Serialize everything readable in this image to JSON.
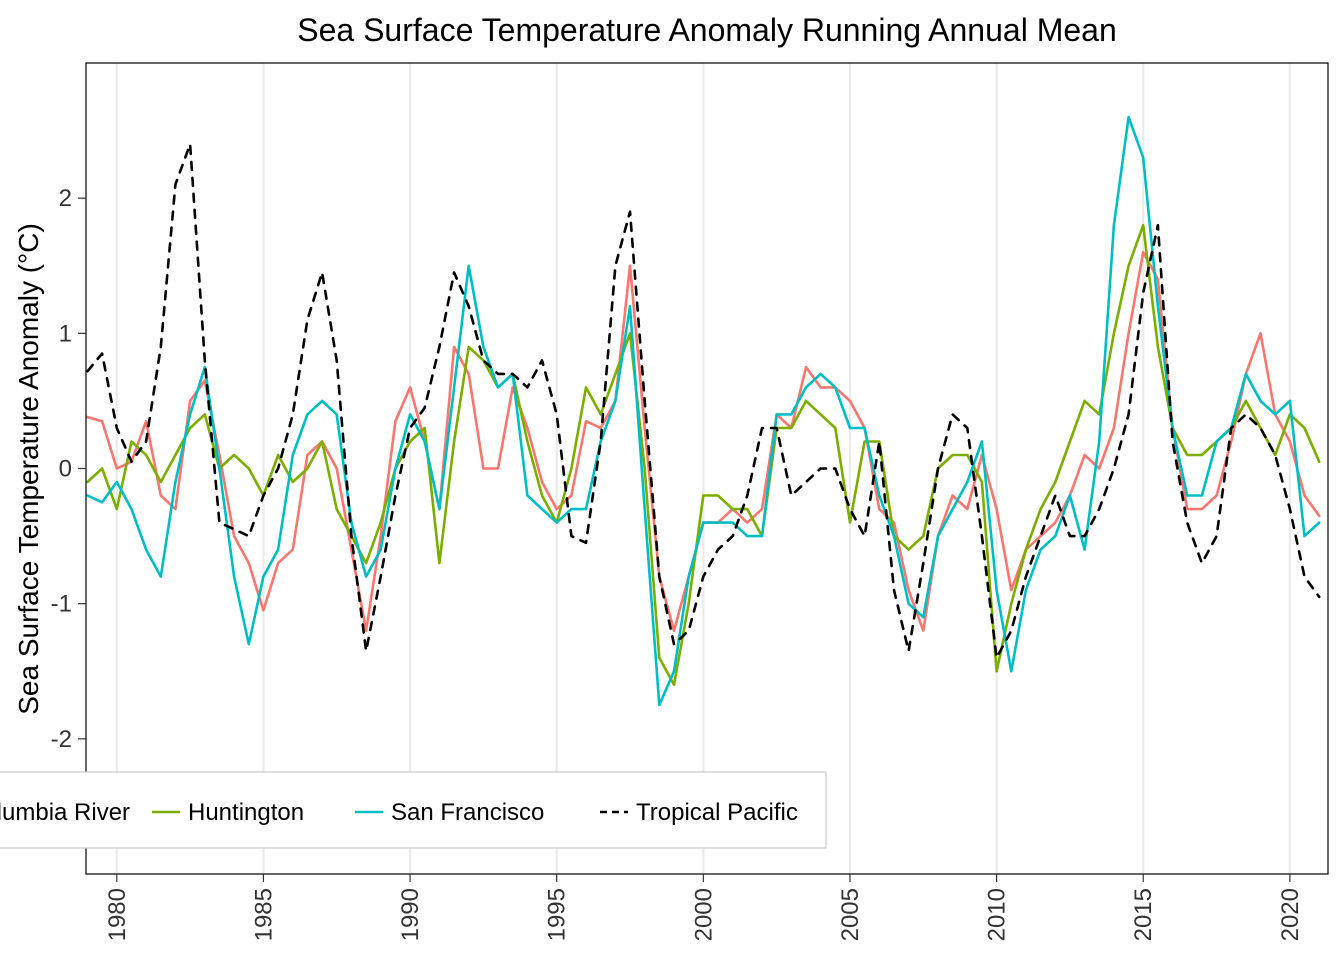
{
  "chart_data": {
    "type": "line",
    "title": "Sea Surface Temperature Anomaly Running Annual Mean",
    "xlabel": "",
    "ylabel": "Sea Surface Temperature Anomaly (°C)",
    "xlim": [
      1978.95,
      2021.3
    ],
    "ylim": [
      -3.0,
      3.0
    ],
    "x_ticks": [
      1980,
      1985,
      1990,
      1995,
      2000,
      2005,
      2010,
      2015,
      2020
    ],
    "x_tick_labels": [
      "1980",
      "1985",
      "1990",
      "1995",
      "2000",
      "2005",
      "2010",
      "2015",
      "2020"
    ],
    "y_ticks": [
      -2,
      -1,
      0,
      1,
      2
    ],
    "y_tick_labels": [
      "-2",
      "-1",
      "0",
      "1",
      "2"
    ],
    "grid": "vertical major lines",
    "legend_position": "bottom-left",
    "series": [
      {
        "name": "Columbia River",
        "legend_label": "Columbia River",
        "color": "#F8766D",
        "dash": "solid",
        "x": [
          1979.0,
          1979.5,
          1980.0,
          1980.5,
          1981.0,
          1981.5,
          1982.0,
          1982.5,
          1983.0,
          1983.5,
          1984.0,
          1984.5,
          1985.0,
          1985.5,
          1986.0,
          1986.5,
          1987.0,
          1987.5,
          1988.0,
          1988.5,
          1989.0,
          1989.5,
          1990.0,
          1990.5,
          1991.0,
          1991.5,
          1992.0,
          1992.5,
          1993.0,
          1993.5,
          1994.0,
          1994.5,
          1995.0,
          1995.5,
          1996.0,
          1996.5,
          1997.0,
          1997.5,
          1998.0,
          1998.5,
          1999.0,
          1999.5,
          2000.0,
          2000.5,
          2001.0,
          2001.5,
          2002.0,
          2002.5,
          2003.0,
          2003.5,
          2004.0,
          2004.5,
          2005.0,
          2005.5,
          2006.0,
          2006.5,
          2007.0,
          2007.5,
          2008.0,
          2008.5,
          2009.0,
          2009.5,
          2010.0,
          2010.5,
          2011.0,
          2011.5,
          2012.0,
          2012.5,
          2013.0,
          2013.5,
          2014.0,
          2014.5,
          2015.0,
          2015.5,
          2016.0,
          2016.5,
          2017.0,
          2017.5,
          2018.0,
          2018.5,
          2019.0,
          2019.5,
          2020.0,
          2020.5,
          2021.0
        ],
        "y": [
          0.38,
          0.35,
          0.0,
          0.05,
          0.35,
          -0.2,
          -0.3,
          0.5,
          0.65,
          0.1,
          -0.5,
          -0.7,
          -1.05,
          -0.7,
          -0.6,
          0.1,
          0.2,
          0.0,
          -0.6,
          -1.2,
          -0.5,
          0.35,
          0.6,
          0.2,
          -0.3,
          0.9,
          0.7,
          0.0,
          0.0,
          0.6,
          0.3,
          -0.1,
          -0.3,
          -0.2,
          0.35,
          0.3,
          0.5,
          1.5,
          0.3,
          -0.8,
          -1.2,
          -0.8,
          -0.4,
          -0.4,
          -0.3,
          -0.4,
          -0.3,
          0.4,
          0.3,
          0.75,
          0.6,
          0.6,
          0.5,
          0.3,
          -0.3,
          -0.4,
          -0.9,
          -1.2,
          -0.5,
          -0.2,
          -0.3,
          0.1,
          -0.3,
          -0.9,
          -0.6,
          -0.5,
          -0.4,
          -0.2,
          0.1,
          0.0,
          0.3,
          1.0,
          1.6,
          1.4,
          0.3,
          -0.3,
          -0.3,
          -0.2,
          0.2,
          0.7,
          1.0,
          0.4,
          0.2,
          -0.2,
          -0.35
        ]
      },
      {
        "name": "Huntington",
        "legend_label": "Huntington",
        "color": "#7CAE00",
        "dash": "solid",
        "x": [
          1979.0,
          1979.5,
          1980.0,
          1980.5,
          1981.0,
          1981.5,
          1982.0,
          1982.5,
          1983.0,
          1983.5,
          1984.0,
          1984.5,
          1985.0,
          1985.5,
          1986.0,
          1986.5,
          1987.0,
          1987.5,
          1988.0,
          1988.5,
          1989.0,
          1989.5,
          1990.0,
          1990.5,
          1991.0,
          1991.5,
          1992.0,
          1992.5,
          1993.0,
          1993.5,
          1994.0,
          1994.5,
          1995.0,
          1995.5,
          1996.0,
          1996.5,
          1997.0,
          1997.5,
          1998.0,
          1998.5,
          1999.0,
          1999.5,
          2000.0,
          2000.5,
          2001.0,
          2001.5,
          2002.0,
          2002.5,
          2003.0,
          2003.5,
          2004.0,
          2004.5,
          2005.0,
          2005.5,
          2006.0,
          2006.5,
          2007.0,
          2007.5,
          2008.0,
          2008.5,
          2009.0,
          2009.5,
          2010.0,
          2010.5,
          2011.0,
          2011.5,
          2012.0,
          2012.5,
          2013.0,
          2013.5,
          2014.0,
          2014.5,
          2015.0,
          2015.5,
          2016.0,
          2016.5,
          2017.0,
          2017.5,
          2018.0,
          2018.5,
          2019.0,
          2019.5,
          2020.0,
          2020.5,
          2021.0
        ],
        "y": [
          -0.1,
          0.0,
          -0.3,
          0.2,
          0.1,
          -0.1,
          0.1,
          0.3,
          0.4,
          0.0,
          0.1,
          0.0,
          -0.2,
          0.1,
          -0.1,
          0.0,
          0.2,
          -0.3,
          -0.5,
          -0.7,
          -0.4,
          0.0,
          0.2,
          0.3,
          -0.7,
          0.2,
          0.9,
          0.8,
          0.6,
          0.7,
          0.2,
          -0.2,
          -0.4,
          0.0,
          0.6,
          0.4,
          0.7,
          1.0,
          0.0,
          -1.4,
          -1.6,
          -1.0,
          -0.2,
          -0.2,
          -0.3,
          -0.3,
          -0.5,
          0.3,
          0.3,
          0.5,
          0.4,
          0.3,
          -0.4,
          0.2,
          0.2,
          -0.5,
          -0.6,
          -0.5,
          0.0,
          0.1,
          0.1,
          -0.1,
          -1.5,
          -1.0,
          -0.6,
          -0.3,
          -0.1,
          0.2,
          0.5,
          0.4,
          1.0,
          1.5,
          1.8,
          0.9,
          0.3,
          0.1,
          0.1,
          0.2,
          0.3,
          0.5,
          0.3,
          0.1,
          0.4,
          0.3,
          0.05
        ]
      },
      {
        "name": "San Francisco",
        "legend_label": "San Francisco",
        "color": "#00BFC4",
        "dash": "solid",
        "x": [
          1979.0,
          1979.5,
          1980.0,
          1980.5,
          1981.0,
          1981.5,
          1982.0,
          1982.5,
          1983.0,
          1983.5,
          1984.0,
          1984.5,
          1985.0,
          1985.5,
          1986.0,
          1986.5,
          1987.0,
          1987.5,
          1988.0,
          1988.5,
          1989.0,
          1989.5,
          1990.0,
          1990.5,
          1991.0,
          1991.5,
          1992.0,
          1992.5,
          1993.0,
          1993.5,
          1994.0,
          1994.5,
          1995.0,
          1995.5,
          1996.0,
          1996.5,
          1997.0,
          1997.5,
          1998.0,
          1998.5,
          1999.0,
          1999.5,
          2000.0,
          2000.5,
          2001.0,
          2001.5,
          2002.0,
          2002.5,
          2003.0,
          2003.5,
          2004.0,
          2004.5,
          2005.0,
          2005.5,
          2006.0,
          2006.5,
          2007.0,
          2007.5,
          2008.0,
          2008.5,
          2009.0,
          2009.5,
          2010.0,
          2010.5,
          2011.0,
          2011.5,
          2012.0,
          2012.5,
          2013.0,
          2013.5,
          2014.0,
          2014.5,
          2015.0,
          2015.5,
          2016.0,
          2016.5,
          2017.0,
          2017.5,
          2018.0,
          2018.5,
          2019.0,
          2019.5,
          2020.0,
          2020.5,
          2021.0
        ],
        "y": [
          -0.2,
          -0.25,
          -0.1,
          -0.3,
          -0.6,
          -0.8,
          -0.1,
          0.4,
          0.75,
          0.0,
          -0.8,
          -1.3,
          -0.8,
          -0.6,
          0.1,
          0.4,
          0.5,
          0.4,
          -0.4,
          -0.8,
          -0.6,
          0.0,
          0.4,
          0.2,
          -0.3,
          0.6,
          1.5,
          0.9,
          0.6,
          0.7,
          -0.2,
          -0.3,
          -0.4,
          -0.3,
          -0.3,
          0.2,
          0.5,
          1.2,
          -0.3,
          -1.75,
          -1.5,
          -0.8,
          -0.4,
          -0.4,
          -0.4,
          -0.5,
          -0.5,
          0.4,
          0.4,
          0.6,
          0.7,
          0.6,
          0.3,
          0.3,
          -0.2,
          -0.5,
          -1.0,
          -1.1,
          -0.5,
          -0.3,
          -0.1,
          0.2,
          -0.9,
          -1.5,
          -0.9,
          -0.6,
          -0.5,
          -0.2,
          -0.6,
          0.2,
          1.8,
          2.6,
          2.3,
          1.2,
          0.3,
          -0.2,
          -0.2,
          0.2,
          0.3,
          0.7,
          0.5,
          0.4,
          0.5,
          -0.5,
          -0.4
        ]
      },
      {
        "name": "Tropical Pacific",
        "legend_label": "Tropical Pacific",
        "color": "#000000",
        "dash": "dashed",
        "x": [
          1979.0,
          1979.5,
          1980.0,
          1980.5,
          1981.0,
          1981.5,
          1982.0,
          1982.5,
          1983.0,
          1983.5,
          1984.0,
          1984.5,
          1985.0,
          1985.5,
          1986.0,
          1986.5,
          1987.0,
          1987.5,
          1988.0,
          1988.5,
          1989.0,
          1989.5,
          1990.0,
          1990.5,
          1991.0,
          1991.5,
          1992.0,
          1992.5,
          1993.0,
          1993.5,
          1994.0,
          1994.5,
          1995.0,
          1995.5,
          1996.0,
          1996.5,
          1997.0,
          1997.5,
          1998.0,
          1998.5,
          1999.0,
          1999.5,
          2000.0,
          2000.5,
          2001.0,
          2001.5,
          2002.0,
          2002.5,
          2003.0,
          2003.5,
          2004.0,
          2004.5,
          2005.0,
          2005.5,
          2006.0,
          2006.5,
          2007.0,
          2007.5,
          2008.0,
          2008.5,
          2009.0,
          2009.5,
          2010.0,
          2010.5,
          2011.0,
          2011.5,
          2012.0,
          2012.5,
          2013.0,
          2013.5,
          2014.0,
          2014.5,
          2015.0,
          2015.5,
          2016.0,
          2016.5,
          2017.0,
          2017.5,
          2018.0,
          2018.5,
          2019.0,
          2019.5,
          2020.0,
          2020.5,
          2021.0
        ],
        "y": [
          0.72,
          0.85,
          0.3,
          0.05,
          0.2,
          0.9,
          2.1,
          2.4,
          0.8,
          -0.4,
          -0.45,
          -0.5,
          -0.2,
          0.0,
          0.4,
          1.1,
          1.45,
          0.8,
          -0.5,
          -1.35,
          -0.8,
          -0.2,
          0.3,
          0.45,
          0.9,
          1.45,
          1.2,
          0.8,
          0.7,
          0.7,
          0.6,
          0.8,
          0.4,
          -0.5,
          -0.55,
          0.2,
          1.5,
          1.9,
          0.5,
          -0.8,
          -1.3,
          -1.2,
          -0.8,
          -0.6,
          -0.5,
          -0.2,
          0.3,
          0.3,
          -0.2,
          -0.1,
          0.0,
          0.0,
          -0.3,
          -0.5,
          0.2,
          -0.9,
          -1.35,
          -0.7,
          0.0,
          0.4,
          0.3,
          -0.5,
          -1.4,
          -1.2,
          -0.8,
          -0.5,
          -0.2,
          -0.5,
          -0.5,
          -0.3,
          0.0,
          0.4,
          1.3,
          1.8,
          0.2,
          -0.4,
          -0.7,
          -0.5,
          0.3,
          0.4,
          0.3,
          0.1,
          -0.3,
          -0.8,
          -0.95
        ]
      }
    ]
  }
}
